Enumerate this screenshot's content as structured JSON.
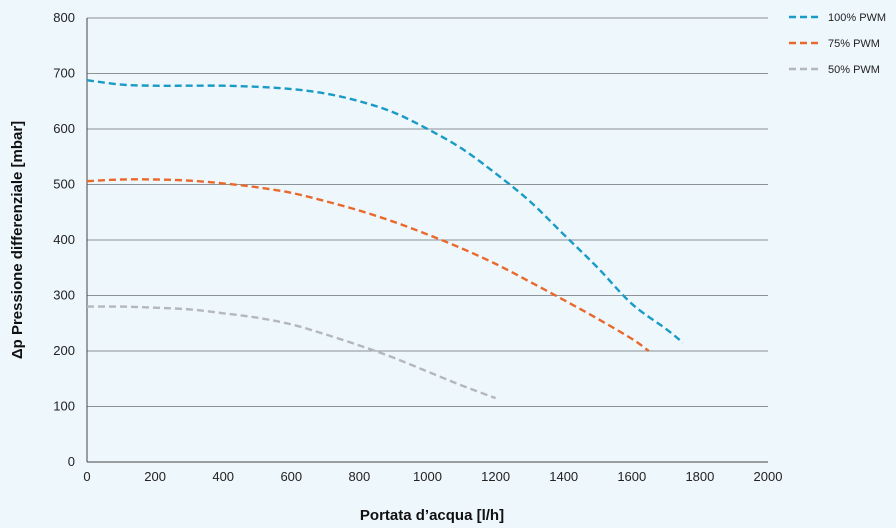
{
  "chart_data": {
    "type": "line",
    "title": "",
    "xlabel": "Portata d’acqua [l/h]",
    "ylabel": "Δp Pressione differenziale [mbar]",
    "xlim": [
      0,
      2000
    ],
    "ylim": [
      0,
      800
    ],
    "xticks": [
      0,
      200,
      400,
      600,
      800,
      1000,
      1200,
      1400,
      1600,
      1800,
      2000
    ],
    "yticks": [
      0,
      100,
      200,
      300,
      400,
      500,
      600,
      700,
      800
    ],
    "grid": "horizontal",
    "legend_position": "top-right",
    "series": [
      {
        "name": "100% PWM",
        "color": "#1a9bc6",
        "x": [
          0,
          100,
          200,
          300,
          400,
          500,
          600,
          700,
          800,
          900,
          1000,
          1100,
          1200,
          1300,
          1400,
          1500,
          1600,
          1700,
          1750
        ],
        "y": [
          688,
          680,
          678,
          678,
          678,
          676,
          672,
          664,
          650,
          630,
          600,
          565,
          520,
          470,
          410,
          350,
          285,
          240,
          215
        ]
      },
      {
        "name": "75% PWM",
        "color": "#e9692c",
        "x": [
          0,
          100,
          200,
          300,
          400,
          500,
          600,
          700,
          800,
          900,
          1000,
          1100,
          1200,
          1300,
          1400,
          1500,
          1600,
          1650
        ],
        "y": [
          506,
          509,
          509,
          507,
          502,
          495,
          485,
          470,
          453,
          433,
          410,
          385,
          357,
          325,
          292,
          258,
          222,
          200
        ]
      },
      {
        "name": "50% PWM",
        "color": "#b4b8bc",
        "x": [
          0,
          100,
          200,
          300,
          400,
          500,
          600,
          700,
          800,
          900,
          1000,
          1100,
          1200
        ],
        "y": [
          280,
          280,
          278,
          275,
          268,
          260,
          248,
          230,
          210,
          188,
          163,
          138,
          115
        ]
      }
    ]
  }
}
